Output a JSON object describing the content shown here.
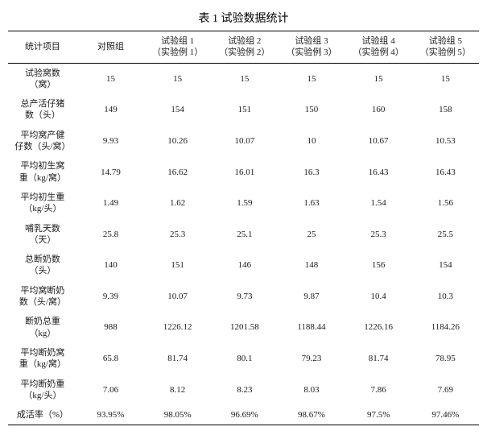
{
  "title": "表 1  试验数据统计",
  "columns": [
    "统计项目",
    "对照组",
    "试验组 1\n（实验例 1）",
    "试验组 2\n（实验例 2）",
    "试验组 3\n（实验例 3）",
    "试验组 4\n（实验例 4）",
    "试验组 5\n（实验例 5）"
  ],
  "rows": [
    {
      "label": "试验窝数\n（窝）",
      "v": [
        "15",
        "15",
        "15",
        "15",
        "15",
        "15"
      ]
    },
    {
      "label": "总产活仔猪\n数（头）",
      "v": [
        "149",
        "154",
        "151",
        "150",
        "160",
        "158"
      ]
    },
    {
      "label": "平均窝产健\n仔数（头/窝）",
      "v": [
        "9.93",
        "10.26",
        "10.07",
        "10",
        "10.67",
        "10.53"
      ]
    },
    {
      "label": "平均初生窝\n重（kg/窝）",
      "v": [
        "14.79",
        "16.62",
        "16.01",
        "16.3",
        "16.43",
        "16.43"
      ]
    },
    {
      "label": "平均初生重\n（kg/头）",
      "v": [
        "1.49",
        "1.62",
        "1.59",
        "1.63",
        "1.54",
        "1.56"
      ]
    },
    {
      "label": "哺乳天数\n（天）",
      "v": [
        "25.8",
        "25.3",
        "25.1",
        "25",
        "25.3",
        "25.5"
      ]
    },
    {
      "label": "总断奶数\n（头）",
      "v": [
        "140",
        "151",
        "146",
        "148",
        "156",
        "154"
      ]
    },
    {
      "label": "平均窝断奶\n数（头/窝）",
      "v": [
        "9.39",
        "10.07",
        "9.73",
        "9.87",
        "10.4",
        "10.3"
      ]
    },
    {
      "label": "断奶总重\n（kg）",
      "v": [
        "988",
        "1226.12",
        "1201.58",
        "1188.44",
        "1226.16",
        "1184.26"
      ]
    },
    {
      "label": "平均断奶窝\n重（kg/窝）",
      "v": [
        "65.8",
        "81.74",
        "80.1",
        "79.23",
        "81.74",
        "78.95"
      ]
    },
    {
      "label": "平均断奶重\n（kg/头）",
      "v": [
        "7.06",
        "8.12",
        "8.23",
        "8.03",
        "7.86",
        "7.69"
      ]
    },
    {
      "label": "成活率（%）",
      "v": [
        "93.95%",
        "98.05%",
        "96.69%",
        "98.67%",
        "97.5%",
        "97.46%"
      ]
    }
  ]
}
